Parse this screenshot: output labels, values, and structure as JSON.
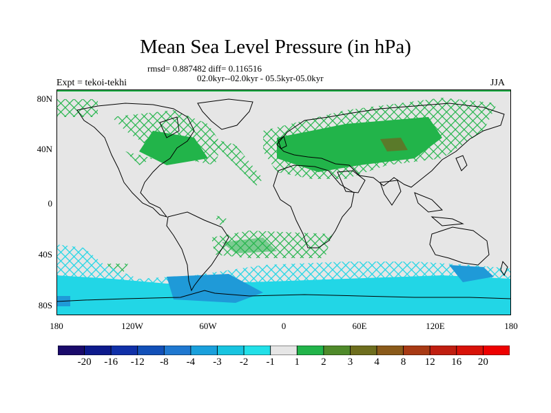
{
  "title": "Mean Sea Level Pressure (in hPa)",
  "stats_line": "rmsd= 0.887482 diff= 0.116516",
  "period_line": "02.0kyr--02.0kyr - 05.5kyr-05.0kyr",
  "experiment": "Expt = tekoi-tekhi",
  "season": "JJA",
  "lat_labels": [
    "80N",
    "40N",
    "0",
    "40S",
    "80S"
  ],
  "lon_labels": [
    "180",
    "120W",
    "60W",
    "0",
    "60E",
    "120E",
    "180"
  ],
  "colorbar": {
    "labels": [
      "-20",
      "-16",
      "-12",
      "-8",
      "-4",
      "-3",
      "-2",
      "-1",
      "1",
      "2",
      "3",
      "4",
      "8",
      "12",
      "16",
      "20"
    ],
    "colors": [
      "#1a0a6b",
      "#0d1a8c",
      "#1030a8",
      "#1250b8",
      "#1f78d0",
      "#1aa0dc",
      "#18c4e0",
      "#22e0e8",
      "#e6e6e6",
      "#22b44a",
      "#4f8a2a",
      "#6e6e1e",
      "#8a5a1a",
      "#a83a14",
      "#c01e10",
      "#d81208",
      "#ee0000"
    ]
  },
  "map_colors": {
    "ocean": "#e6e6e6",
    "green": "#22b44a",
    "dark_green": "#5a7a2a",
    "cyan": "#22d6e6",
    "blue": "#1f9ad8",
    "frame": "#000000"
  }
}
